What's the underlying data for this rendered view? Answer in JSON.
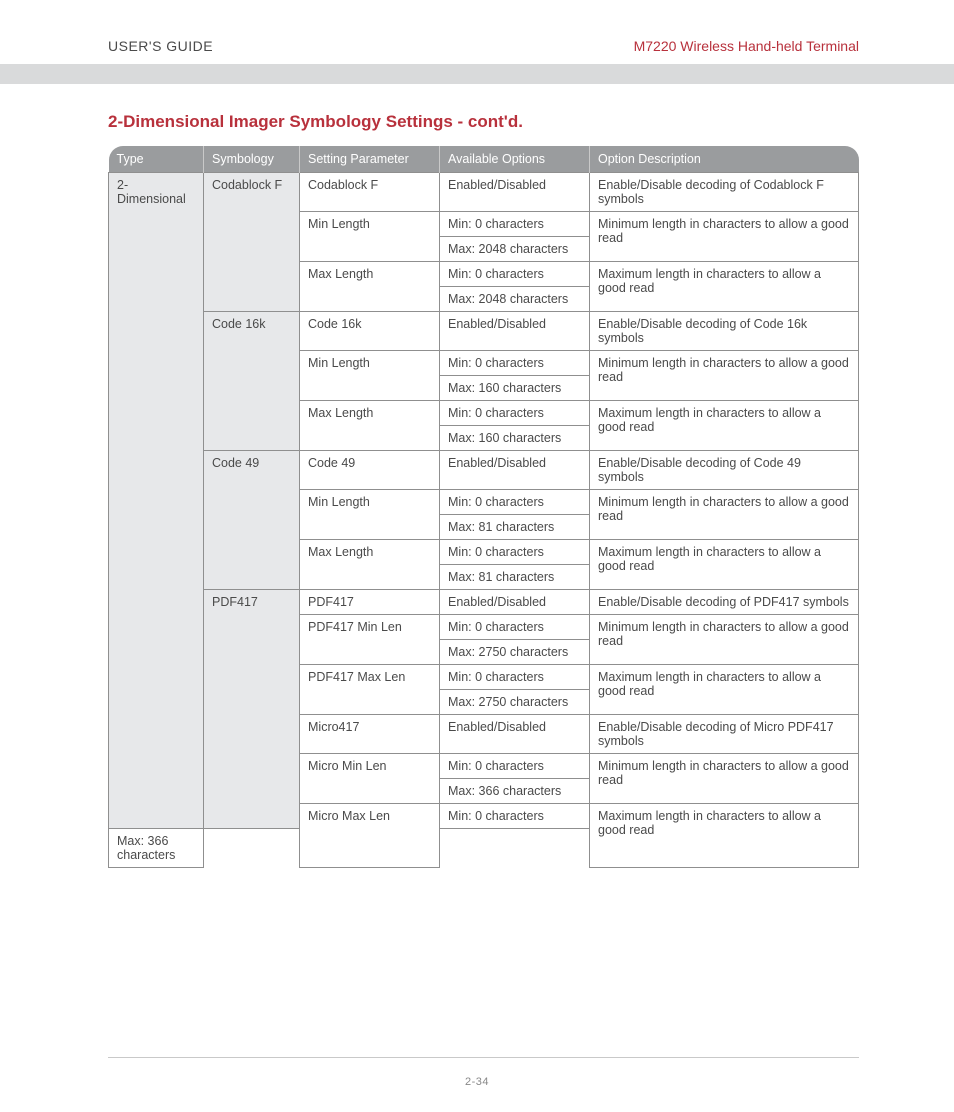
{
  "header": {
    "left": "USER'S GUIDE",
    "right": "M7220 Wireless Hand-held Terminal"
  },
  "section_title": "2-Dimensional Imager Symbology Settings - cont'd.",
  "columns": [
    "Type",
    "Symbology",
    "Setting Parameter",
    "Available Options",
    "Option Description"
  ],
  "col_classes": [
    "col-type",
    "col-sym",
    "col-param",
    "col-opt",
    "col-desc"
  ],
  "rows": [
    {
      "cells": [
        {
          "text": "2-Dimensional",
          "rowspan": 24,
          "shade": true
        },
        {
          "text": "Codablock F",
          "rowspan": 5,
          "shade": true
        },
        {
          "text": "Codablock F"
        },
        {
          "text": "Enabled/Disabled"
        },
        {
          "text": "Enable/Disable decoding of  Codablock F symbols"
        }
      ]
    },
    {
      "cells": [
        {
          "text": "Min Length",
          "rowspan": 2
        },
        {
          "text": "Min: 0 characters"
        },
        {
          "text": "Minimum length in characters to allow a good read",
          "rowspan": 2
        }
      ]
    },
    {
      "cells": [
        {
          "text": "Max: 2048 characters"
        }
      ]
    },
    {
      "cells": [
        {
          "text": "Max Length",
          "rowspan": 2
        },
        {
          "text": "Min: 0 characters"
        },
        {
          "text": "Maximum length in characters to allow a good read",
          "rowspan": 2
        }
      ]
    },
    {
      "cells": [
        {
          "text": "Max: 2048 characters"
        }
      ]
    },
    {
      "cells": [
        {
          "text": "Code 16k",
          "rowspan": 5,
          "shade": true
        },
        {
          "text": "Code 16k"
        },
        {
          "text": "Enabled/Disabled"
        },
        {
          "text": "Enable/Disable decoding of  Code 16k symbols"
        }
      ]
    },
    {
      "cells": [
        {
          "text": "Min Length",
          "rowspan": 2
        },
        {
          "text": "Min: 0 characters"
        },
        {
          "text": "Minimum length in characters to allow a good read",
          "rowspan": 2
        }
      ]
    },
    {
      "cells": [
        {
          "text": "Max: 160 characters"
        }
      ]
    },
    {
      "cells": [
        {
          "text": "Max Length",
          "rowspan": 2
        },
        {
          "text": "Min: 0 characters"
        },
        {
          "text": "Maximum length in characters to allow a good read",
          "rowspan": 2
        }
      ]
    },
    {
      "cells": [
        {
          "text": "Max: 160 characters"
        }
      ]
    },
    {
      "cells": [
        {
          "text": "Code 49",
          "rowspan": 5,
          "shade": true
        },
        {
          "text": "Code 49"
        },
        {
          "text": "Enabled/Disabled"
        },
        {
          "text": "Enable/Disable decoding of  Code 49 symbols"
        }
      ]
    },
    {
      "cells": [
        {
          "text": "Min Length",
          "rowspan": 2
        },
        {
          "text": "Min: 0 characters"
        },
        {
          "text": "Minimum length in characters to allow a good read",
          "rowspan": 2
        }
      ]
    },
    {
      "cells": [
        {
          "text": "Max: 81 characters"
        }
      ]
    },
    {
      "cells": [
        {
          "text": "Max Length",
          "rowspan": 2
        },
        {
          "text": "Min: 0 characters"
        },
        {
          "text": "Maximum length in characters to allow a good read",
          "rowspan": 2
        }
      ]
    },
    {
      "cells": [
        {
          "text": "Max: 81 characters"
        }
      ]
    },
    {
      "cells": [
        {
          "text": "PDF417",
          "rowspan": 9,
          "shade": true
        },
        {
          "text": "PDF417"
        },
        {
          "text": "Enabled/Disabled"
        },
        {
          "text": "Enable/Disable decoding of PDF417 symbols"
        }
      ]
    },
    {
      "cells": [
        {
          "text": "PDF417 Min Len",
          "rowspan": 2
        },
        {
          "text": "Min: 0 characters"
        },
        {
          "text": "Minimum length in characters to allow a good read",
          "rowspan": 2
        }
      ]
    },
    {
      "cells": [
        {
          "text": "Max: 2750 characters"
        }
      ]
    },
    {
      "cells": [
        {
          "text": "PDF417 Max Len",
          "rowspan": 2
        },
        {
          "text": "Min: 0 characters"
        },
        {
          "text": "Maximum length in characters to allow a good read",
          "rowspan": 2
        }
      ]
    },
    {
      "cells": [
        {
          "text": "Max: 2750 characters"
        }
      ]
    },
    {
      "cells": [
        {
          "text": "Micro417"
        },
        {
          "text": "Enabled/Disabled"
        },
        {
          "text": "Enable/Disable decoding of  Micro PDF417 symbols"
        }
      ]
    },
    {
      "cells": [
        {
          "text": "Micro Min Len",
          "rowspan": 2
        },
        {
          "text": "Min: 0 characters"
        },
        {
          "text": "Minimum length in characters to allow a good read",
          "rowspan": 2
        }
      ]
    },
    {
      "cells": [
        {
          "text": "Max: 366 characters"
        }
      ]
    },
    {
      "cells": [
        {
          "text": "Micro Max Len",
          "rowspan": 2
        },
        {
          "text": "Min: 0 characters"
        },
        {
          "text": "Maximum length in characters to allow a good read",
          "rowspan": 2
        }
      ]
    },
    {
      "cells": [
        {
          "text": "Max: 366 characters"
        }
      ]
    }
  ],
  "page_number": "2-34",
  "colors": {
    "accent": "#b8313c",
    "header_bg": "#9a9c9e",
    "shade_bg": "#e7e8ea",
    "border": "#8f8f8f",
    "text": "#4a4a4a"
  }
}
